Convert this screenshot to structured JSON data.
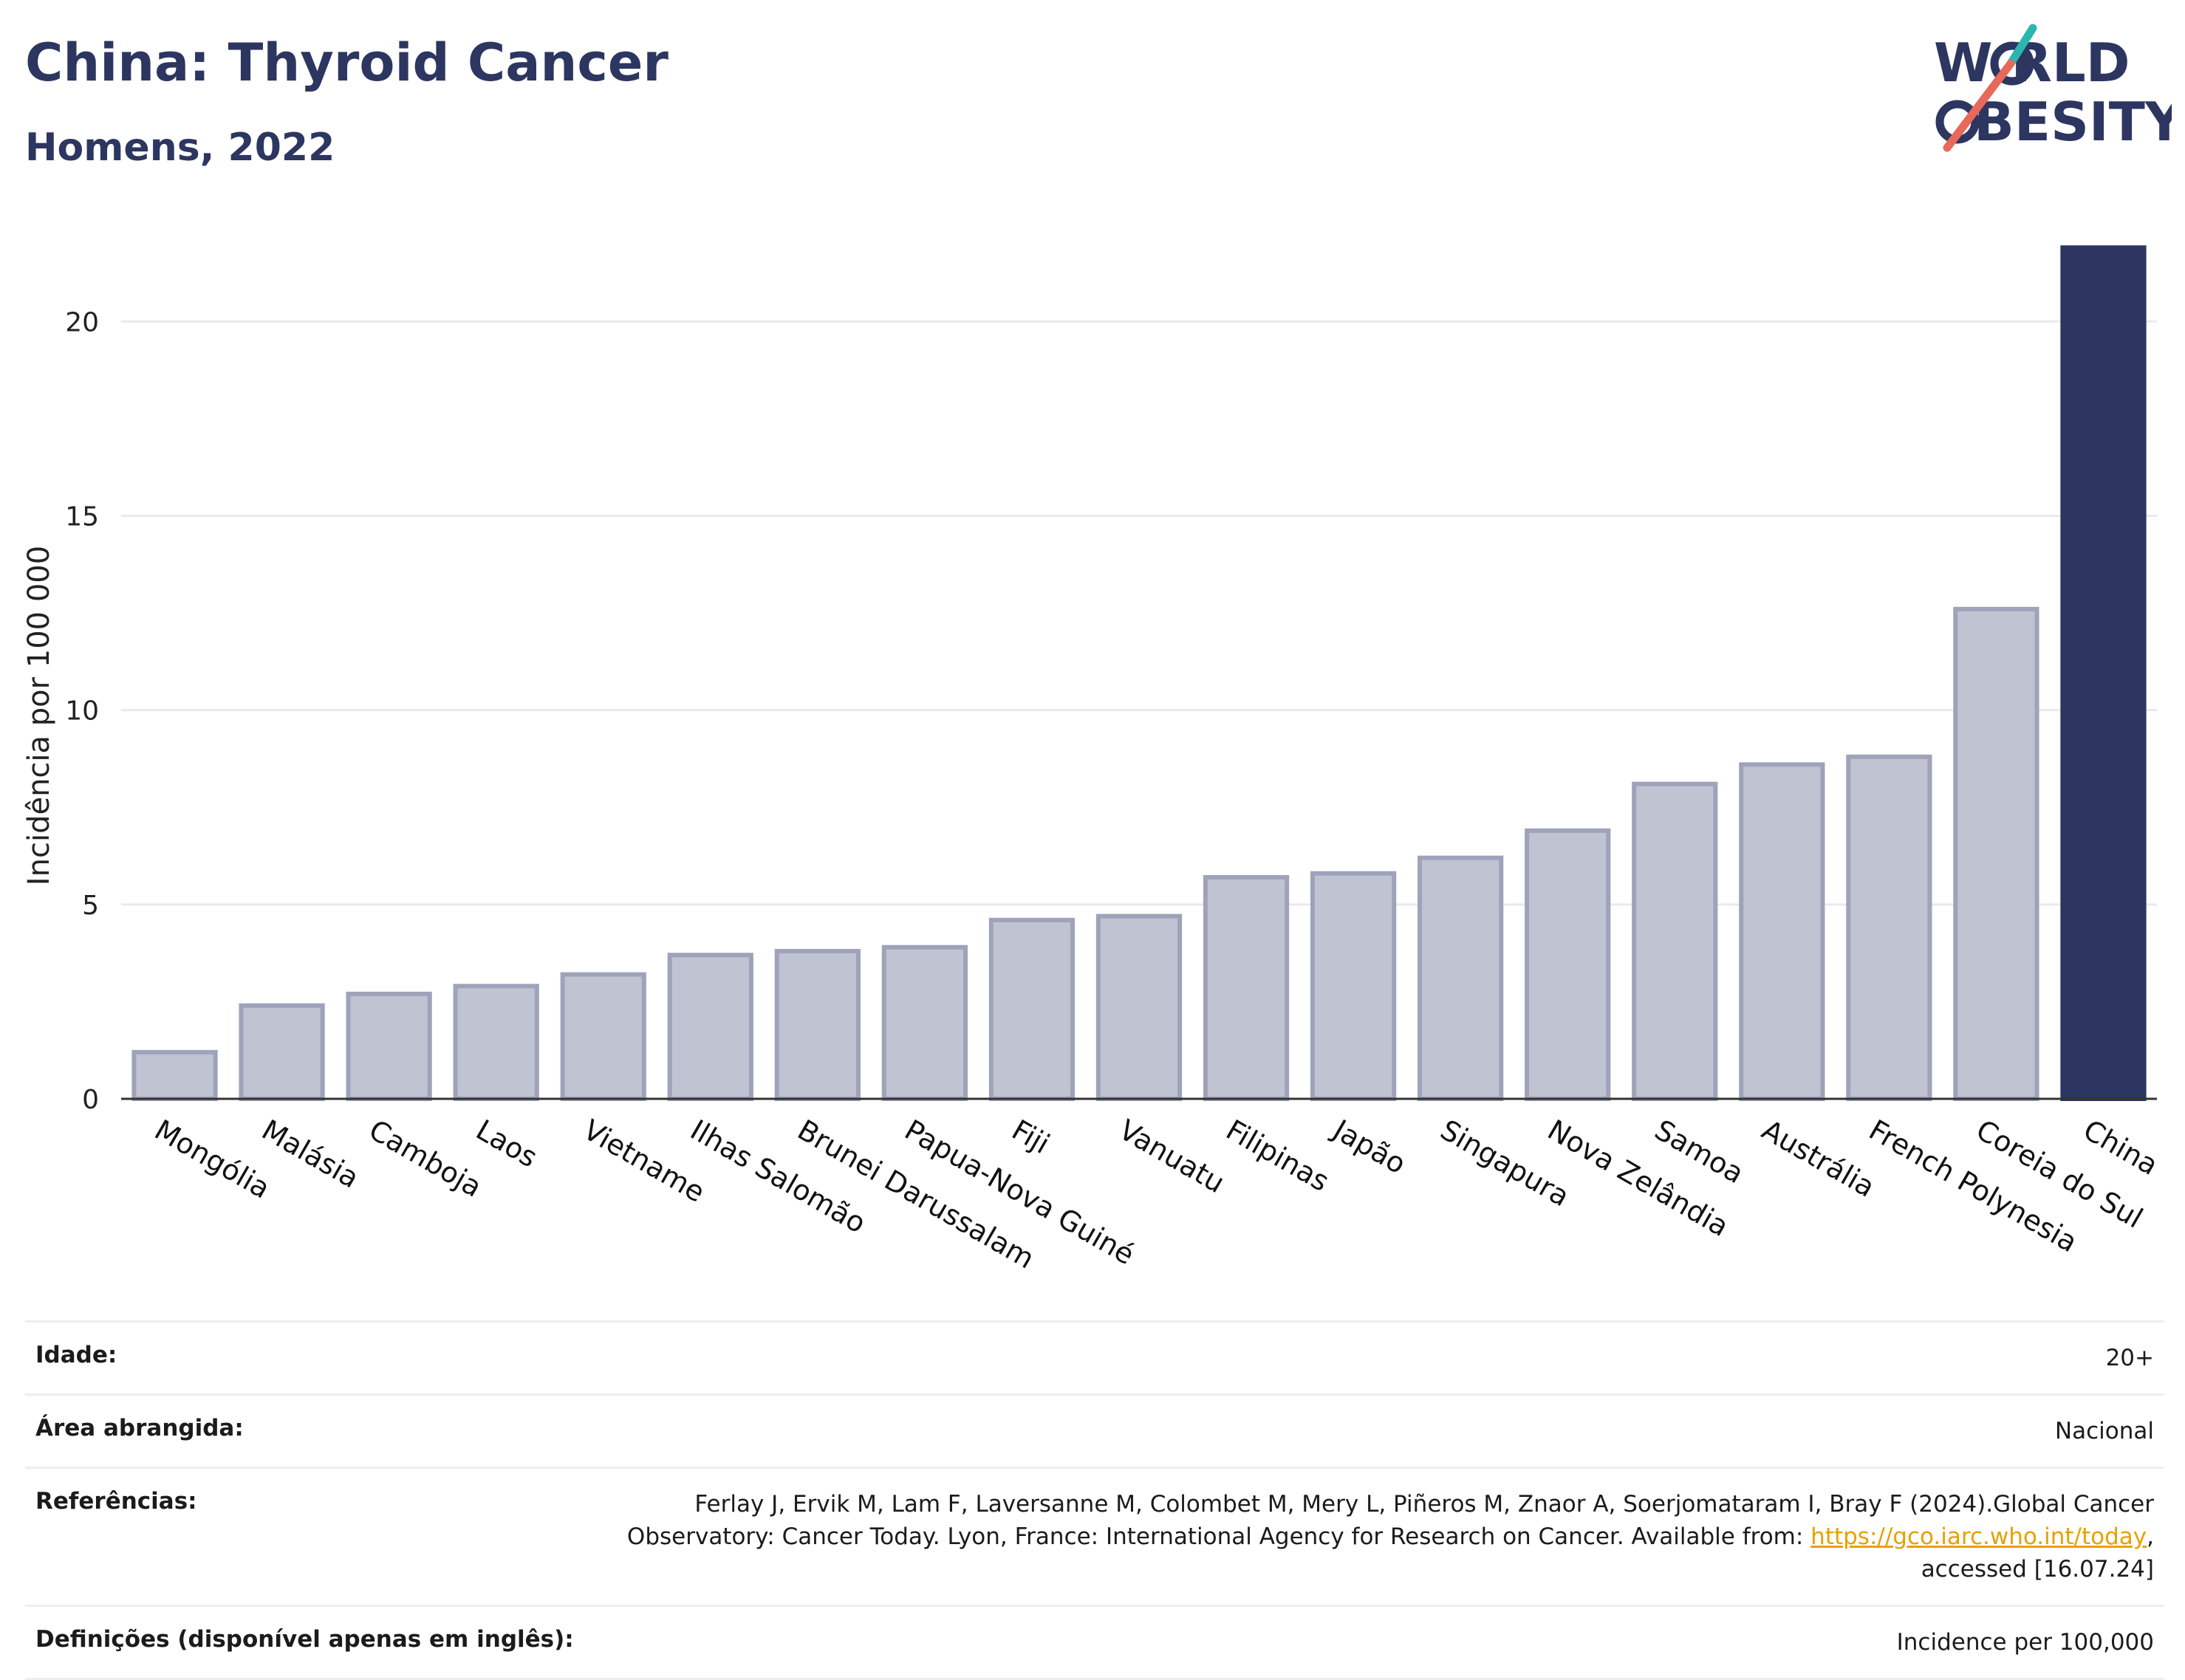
{
  "header": {
    "title": "China: Thyroid Cancer",
    "subtitle": "Homens, 2022"
  },
  "logo": {
    "line1": "W RLD",
    "line2": "BESITY",
    "colors": {
      "text": "#2c3660",
      "slash_top": "#2bb6b0",
      "slash_bottom": "#e8685a"
    }
  },
  "chart_data": {
    "type": "bar",
    "ylabel": "Incidência por 100 000",
    "ylim": [
      0,
      22
    ],
    "yticks": [
      0,
      5,
      10,
      15,
      20
    ],
    "grid": true,
    "categories": [
      "Mongólia",
      "Malásia",
      "Camboja",
      "Laos",
      "Vietname",
      "Ilhas Salomão",
      "Brunei Darussalam",
      "Papua-Nova Guiné",
      "Fiji",
      "Vanuatu",
      "Filipinas",
      "Japão",
      "Singapura",
      "Nova Zelândia",
      "Samoa",
      "Austrália",
      "French Polynesia",
      "Coreia do Sul",
      "China"
    ],
    "values": [
      1.2,
      2.4,
      2.7,
      2.9,
      3.2,
      3.7,
      3.8,
      3.9,
      4.6,
      4.7,
      5.7,
      5.8,
      6.2,
      6.9,
      8.1,
      8.6,
      8.8,
      12.6,
      21.9
    ],
    "highlight": "China",
    "colors": {
      "bar": "#c0c3d1",
      "bar_edge": "#9ea3ba",
      "highlight": "#2c3660"
    }
  },
  "meta": {
    "idade_label": "Idade:",
    "idade_value": "20+",
    "area_label": "Área abrangida:",
    "area_value": "Nacional",
    "ref_label": "Referências:",
    "ref_text_1": "Ferlay J, Ervik M, Lam F, Laversanne M, Colombet M, Mery L, Piñeros M, Znaor A, Soerjomataram I, Bray F (2024).Global Cancer Observatory: Cancer Today. Lyon, France: International Agency for Research on Cancer. Available from: ",
    "ref_link": "https://gco.iarc.who.int/today",
    "ref_text_2": ", accessed [16.07.24]",
    "def_label": "Definições (disponível apenas em inglês):",
    "def_value": "Incidence per 100,000"
  }
}
